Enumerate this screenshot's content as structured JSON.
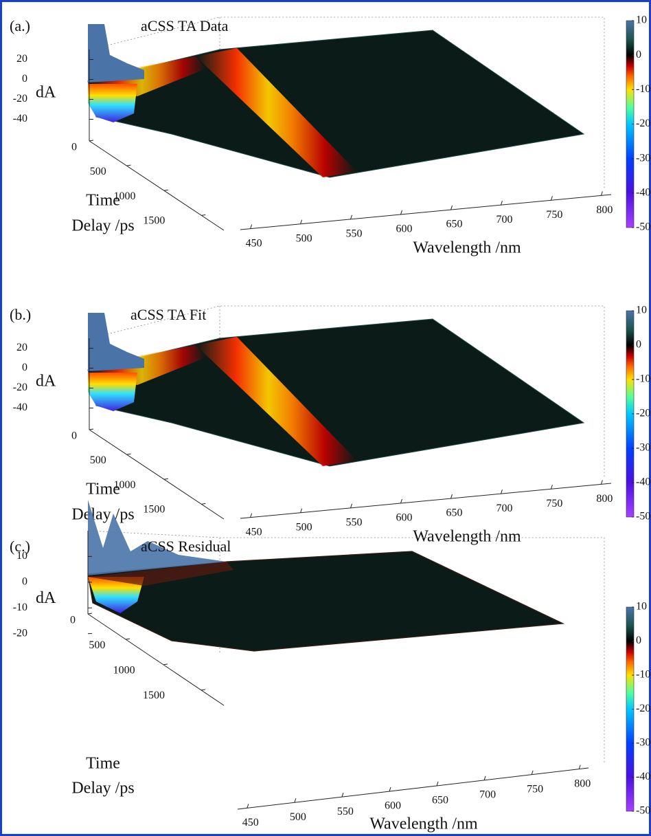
{
  "chart_data": [
    {
      "type": "surface",
      "panel_label": "(a.)",
      "title": "aCSS TA Data",
      "zlabel": "dA",
      "ylabel": [
        "Time",
        "Delay /ps"
      ],
      "xlabel": "Wavelength /nm",
      "xlim": [
        440,
        810
      ],
      "xticks": [
        450,
        500,
        550,
        600,
        650,
        700,
        750,
        800
      ],
      "ylim": [
        0,
        1800
      ],
      "yticks": [
        0,
        500,
        1000,
        1500
      ],
      "zlim": [
        -50,
        30
      ],
      "zticks": [
        20,
        0,
        -20,
        -40
      ],
      "clim": [
        -50,
        10
      ],
      "cticks": [
        10,
        0,
        -10,
        -20,
        -30,
        -40,
        -50
      ]
    },
    {
      "type": "surface",
      "panel_label": "(b.)",
      "title": "aCSS TA Fit",
      "zlabel": "dA",
      "ylabel": [
        "Time",
        "Delay /ps"
      ],
      "xlabel": "Wavelength /nm",
      "xlim": [
        440,
        810
      ],
      "xticks": [
        450,
        500,
        550,
        600,
        650,
        700,
        750,
        800
      ],
      "ylim": [
        0,
        1800
      ],
      "yticks": [
        0,
        500,
        1000,
        1500
      ],
      "zlim": [
        -50,
        30
      ],
      "zticks": [
        20,
        0,
        -20,
        -40
      ],
      "clim": [
        -50,
        10
      ],
      "cticks": [
        10,
        0,
        -10,
        -20,
        -30,
        -40,
        -50
      ]
    },
    {
      "type": "surface",
      "panel_label": "(c.)",
      "title": "aCSS Residual",
      "zlabel": "dA",
      "ylabel": [
        "Time",
        "Delay /ps"
      ],
      "xlabel": "Wavelength /nm",
      "xlim": [
        440,
        810
      ],
      "xticks": [
        450,
        500,
        550,
        600,
        650,
        700,
        750,
        800
      ],
      "ylim": [
        0,
        1800
      ],
      "yticks": [
        0,
        500,
        1000,
        1500
      ],
      "zlim": [
        -30,
        20
      ],
      "zticks": [
        10,
        0,
        -10,
        -20
      ],
      "clim": [
        -50,
        10
      ],
      "cticks": [
        10,
        0,
        -10,
        -20,
        -30,
        -40,
        -50
      ]
    }
  ]
}
